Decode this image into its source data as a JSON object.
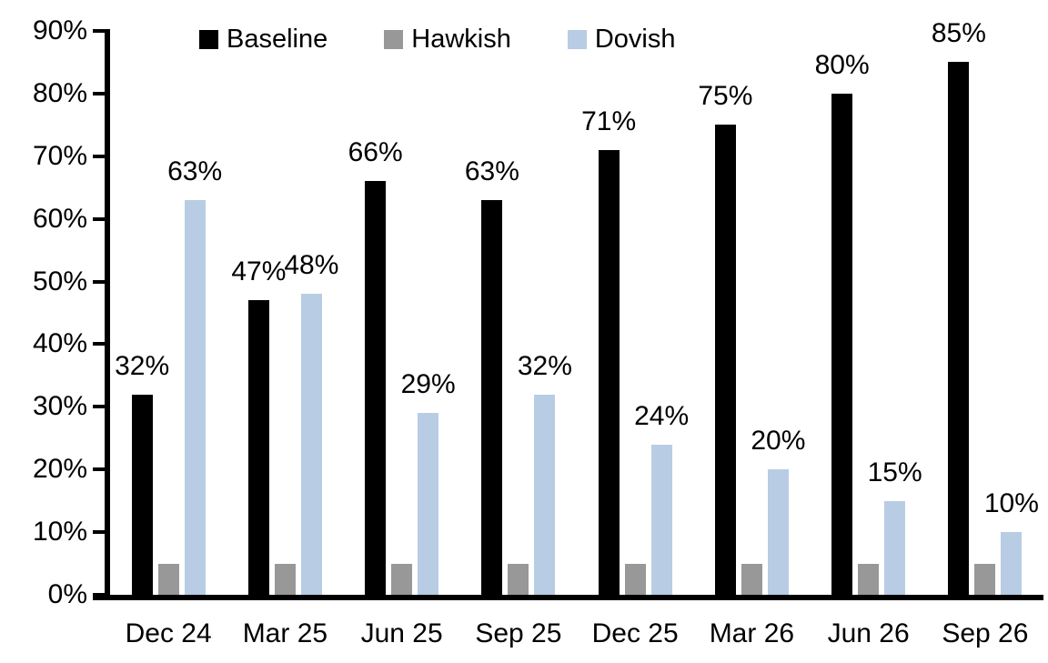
{
  "chart_data": {
    "type": "bar",
    "title": "",
    "categories": [
      "Dec 24",
      "Mar 25",
      "Jun 25",
      "Sep 25",
      "Dec 25",
      "Mar 26",
      "Jun 26",
      "Sep 26"
    ],
    "series": [
      {
        "name": "Baseline",
        "color": "#000000",
        "values": [
          32,
          47,
          66,
          63,
          71,
          75,
          80,
          85
        ],
        "labels": [
          "32%",
          "47%",
          "66%",
          "63%",
          "71%",
          "75%",
          "80%",
          "85%"
        ],
        "show_labels": true
      },
      {
        "name": "Hawkish",
        "color": "#989898",
        "values": [
          5,
          5,
          5,
          5,
          5,
          5,
          5,
          5
        ],
        "labels": [],
        "show_labels": false
      },
      {
        "name": "Dovish",
        "color": "#B8CCE4",
        "values": [
          63,
          48,
          29,
          32,
          24,
          20,
          15,
          10
        ],
        "labels": [
          "63%",
          "48%",
          "29%",
          "32%",
          "24%",
          "20%",
          "15%",
          "10%"
        ],
        "show_labels": true
      }
    ],
    "y_axis": {
      "min": 0,
      "max": 90,
      "tick_step": 10,
      "tick_labels": [
        "0%",
        "10%",
        "20%",
        "30%",
        "40%",
        "50%",
        "60%",
        "70%",
        "80%",
        "90%"
      ],
      "ylim": [
        0,
        90
      ]
    },
    "legend": {
      "position": "top",
      "entries": [
        "Baseline",
        "Hawkish",
        "Dovish"
      ]
    },
    "grid": false,
    "axis_color": "#000000",
    "background": "#FFFFFF"
  }
}
